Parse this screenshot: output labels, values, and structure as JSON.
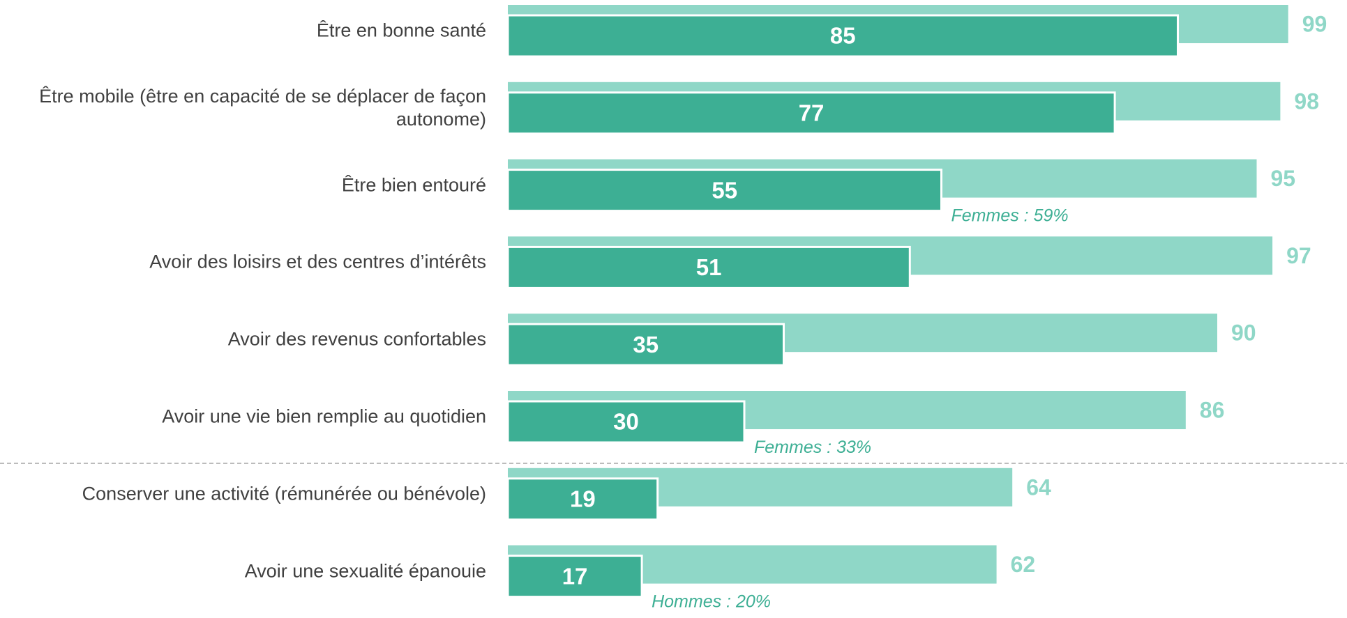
{
  "chart_data": {
    "type": "overlapping-bar",
    "categories": [
      "Être en bonne santé",
      "Être mobile (être en capacité de se déplacer de façon autonome)",
      "Être bien entouré",
      "Avoir des loisirs et des centres d’intérêts",
      "Avoir des revenus confortables",
      "Avoir une vie bien remplie au quotidien",
      "Conserver une activité (rémunérée ou bénévole)",
      "Avoir une sexualité épanouie"
    ],
    "series": [
      {
        "color": "#8fd7c7",
        "values": [
          99,
          98,
          95,
          97,
          90,
          86,
          64,
          62
        ]
      },
      {
        "color": "#3daf94",
        "values": [
          85,
          77,
          55,
          51,
          35,
          30,
          19,
          17
        ]
      }
    ],
    "annotations": [
      null,
      null,
      "Femmes : 59%",
      null,
      null,
      "Femmes : 33%",
      null,
      "Hommes : 20%"
    ],
    "xlim": [
      0,
      100
    ]
  }
}
